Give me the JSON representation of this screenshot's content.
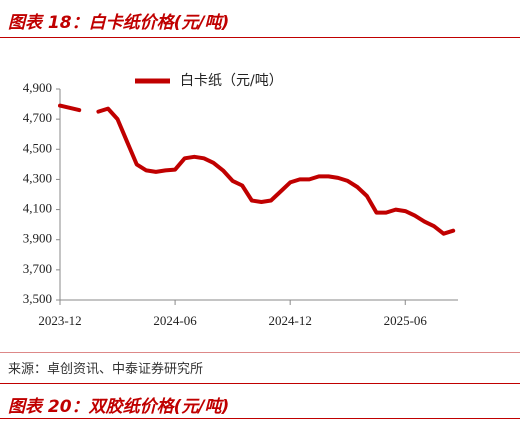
{
  "header": {
    "title": "图表 18：白卡纸价格(元/吨)"
  },
  "chart_data": {
    "type": "line",
    "categories": [
      "2023-12",
      null,
      null,
      null,
      null,
      null,
      null,
      null,
      null,
      null,
      null,
      null,
      "2024-06",
      null,
      null,
      null,
      null,
      null,
      null,
      null,
      null,
      null,
      null,
      null,
      "2024-12",
      null,
      null,
      null,
      null,
      null,
      null,
      null,
      null,
      null,
      null,
      null,
      "2025-06",
      null,
      null,
      null,
      null,
      null
    ],
    "series": [
      {
        "name": "白卡纸（元/吨）",
        "color": "#c00000",
        "values": [
          4790,
          4775,
          4760,
          null,
          4750,
          4770,
          4700,
          4550,
          4400,
          4360,
          4350,
          4360,
          4365,
          4440,
          4450,
          4440,
          4410,
          4360,
          4290,
          4260,
          4160,
          4150,
          4160,
          4220,
          4280,
          4300,
          4300,
          4320,
          4320,
          4310,
          4290,
          4250,
          4190,
          4080,
          4080,
          4100,
          4090,
          4060,
          4020,
          3990,
          3940,
          3960
        ]
      }
    ],
    "ylim": [
      3500,
      4900
    ],
    "yticks": [
      {
        "value": 3500,
        "label": "3,500"
      },
      {
        "value": 3700,
        "label": "3,700"
      },
      {
        "value": 3900,
        "label": "3,900"
      },
      {
        "value": 4100,
        "label": "4,100"
      },
      {
        "value": 4300,
        "label": "4,300"
      },
      {
        "value": 4500,
        "label": "4,500"
      },
      {
        "value": 4700,
        "label": "4,700"
      },
      {
        "value": 4900,
        "label": "4,900"
      }
    ],
    "grid": false
  },
  "source": "来源：卓创资讯、中泰证券研究所",
  "next_title": "图表 20：双胶纸价格(元/吨)"
}
